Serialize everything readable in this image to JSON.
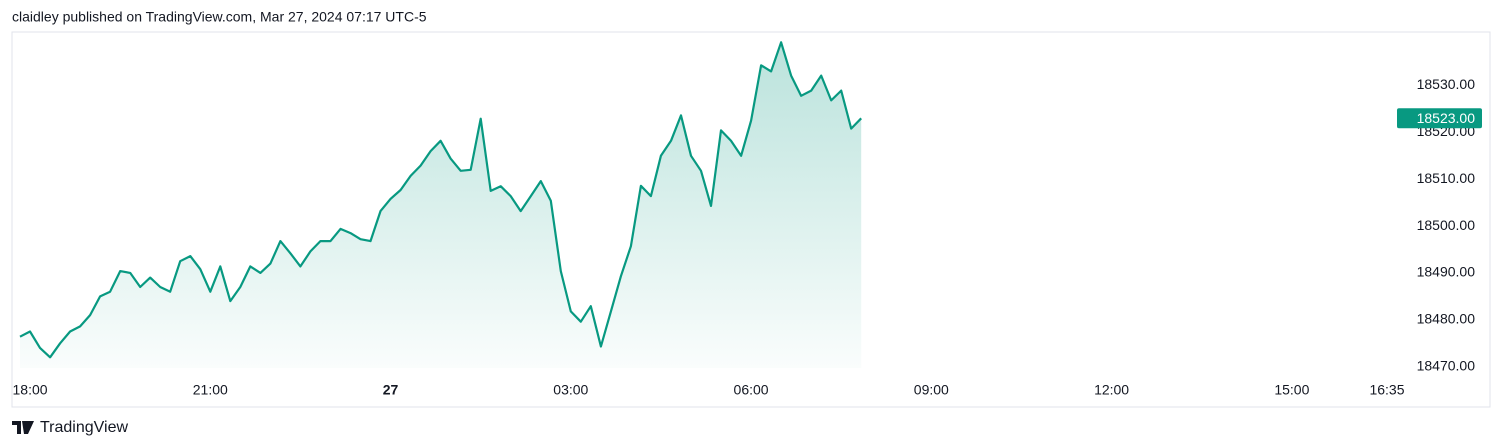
{
  "header": "claidley published on TradingView.com, Mar 27, 2024 07:17 UTC-5",
  "footer": "TradingView",
  "chart_data": {
    "type": "area",
    "x": [
      "17:50",
      "18:00",
      "18:10",
      "18:20",
      "18:30",
      "18:40",
      "18:50",
      "19:00",
      "19:10",
      "19:20",
      "19:30",
      "19:40",
      "19:50",
      "20:00",
      "20:10",
      "20:20",
      "20:30",
      "20:40",
      "20:50",
      "21:00",
      "21:10",
      "21:20",
      "21:30",
      "21:40",
      "21:50",
      "22:00",
      "22:10",
      "22:20",
      "22:30",
      "22:40",
      "22:50",
      "23:00",
      "23:10",
      "23:20",
      "23:30",
      "23:40",
      "23:50",
      "00:00",
      "00:10",
      "00:20",
      "00:30",
      "00:40",
      "00:50",
      "01:00",
      "01:10",
      "01:20",
      "01:30",
      "01:40",
      "01:50",
      "02:00",
      "02:10",
      "02:20",
      "02:30",
      "02:40",
      "02:50",
      "03:00",
      "03:10",
      "03:20",
      "03:30",
      "03:40",
      "03:50",
      "04:00",
      "04:10",
      "04:20",
      "04:30",
      "04:40",
      "04:50",
      "05:00",
      "05:10",
      "05:20",
      "05:30",
      "05:40",
      "05:50",
      "06:00",
      "06:10",
      "06:20",
      "06:30",
      "06:40",
      "06:50",
      "07:00",
      "07:10",
      "07:20",
      "07:30",
      "07:40",
      "07:50"
    ],
    "values": [
      18476.4,
      18477.5,
      18474,
      18472,
      18475,
      18477.5,
      18478.6,
      18481,
      18485,
      18486,
      18490.4,
      18490,
      18487,
      18489,
      18487,
      18486,
      18492.5,
      18493.6,
      18490.8,
      18486,
      18491.4,
      18484,
      18487,
      18491.4,
      18490,
      18492,
      18496.8,
      18494.2,
      18491.4,
      18494.6,
      18496.8,
      18496.8,
      18499.4,
      18498.5,
      18497.2,
      18496.8,
      18503.2,
      18505.8,
      18507.7,
      18510.7,
      18512.9,
      18516,
      18518.2,
      18514.4,
      18511.8,
      18512,
      18522.9,
      18507.5,
      18508.5,
      18506.4,
      18503.2,
      18506.4,
      18509.6,
      18505.4,
      18490.4,
      18481.8,
      18479.6,
      18482.9,
      18474.3,
      18481.8,
      18489.3,
      18495.7,
      18508.6,
      18506.4,
      18515,
      18518.2,
      18523.6,
      18515,
      18511.8,
      18504.3,
      18520.4,
      18518.2,
      18515,
      18522.5,
      18534.3,
      18533,
      18539.2,
      18532.1,
      18527.8,
      18528.9,
      18532.1,
      18526.8,
      18528.9,
      18520.8,
      18523
    ],
    "color": "#089981",
    "last_price": {
      "value": 18523,
      "label": "18523.00"
    },
    "xlim": [
      "17:42",
      "16:38"
    ],
    "xticks": [
      "18:00",
      "21:00",
      {
        "value": "00:00",
        "label": "27"
      },
      "03:00",
      "06:00",
      "09:00",
      "12:00",
      "15:00",
      "16:35"
    ],
    "ylim": [
      18461.4,
      18541.4
    ],
    "yticks": [
      {
        "value": 18470,
        "label": "18470.00"
      },
      {
        "value": 18480,
        "label": "18480.00"
      },
      {
        "value": 18490,
        "label": "18490.00"
      },
      {
        "value": 18500,
        "label": "18500.00"
      },
      {
        "value": 18510,
        "label": "18510.00"
      },
      {
        "value": 18520,
        "label": "18520.00"
      },
      {
        "value": 18530,
        "label": "18530.00"
      }
    ]
  }
}
